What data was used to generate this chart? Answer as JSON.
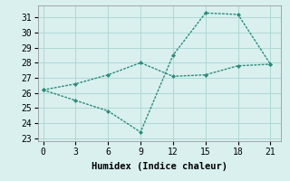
{
  "line1_x": [
    0,
    3,
    6,
    9,
    12,
    15,
    18,
    21
  ],
  "line1_y": [
    26.2,
    26.6,
    27.2,
    28.0,
    27.1,
    27.2,
    27.8,
    27.9
  ],
  "line2_x": [
    0,
    3,
    6,
    9,
    12,
    15,
    18,
    21
  ],
  "line2_y": [
    26.2,
    25.5,
    24.8,
    23.4,
    28.5,
    31.3,
    31.2,
    27.9
  ],
  "line_color": "#2e8b7a",
  "bg_color": "#d9f0ef",
  "grid_color": "#afd8d5",
  "xlabel": "Humidex (Indice chaleur)",
  "xlim": [
    -0.5,
    22
  ],
  "ylim": [
    22.8,
    31.8
  ],
  "xticks": [
    0,
    3,
    6,
    9,
    12,
    15,
    18,
    21
  ],
  "yticks": [
    23,
    24,
    25,
    26,
    27,
    28,
    29,
    30,
    31
  ],
  "label_fontsize": 7.5,
  "tick_fontsize": 7
}
